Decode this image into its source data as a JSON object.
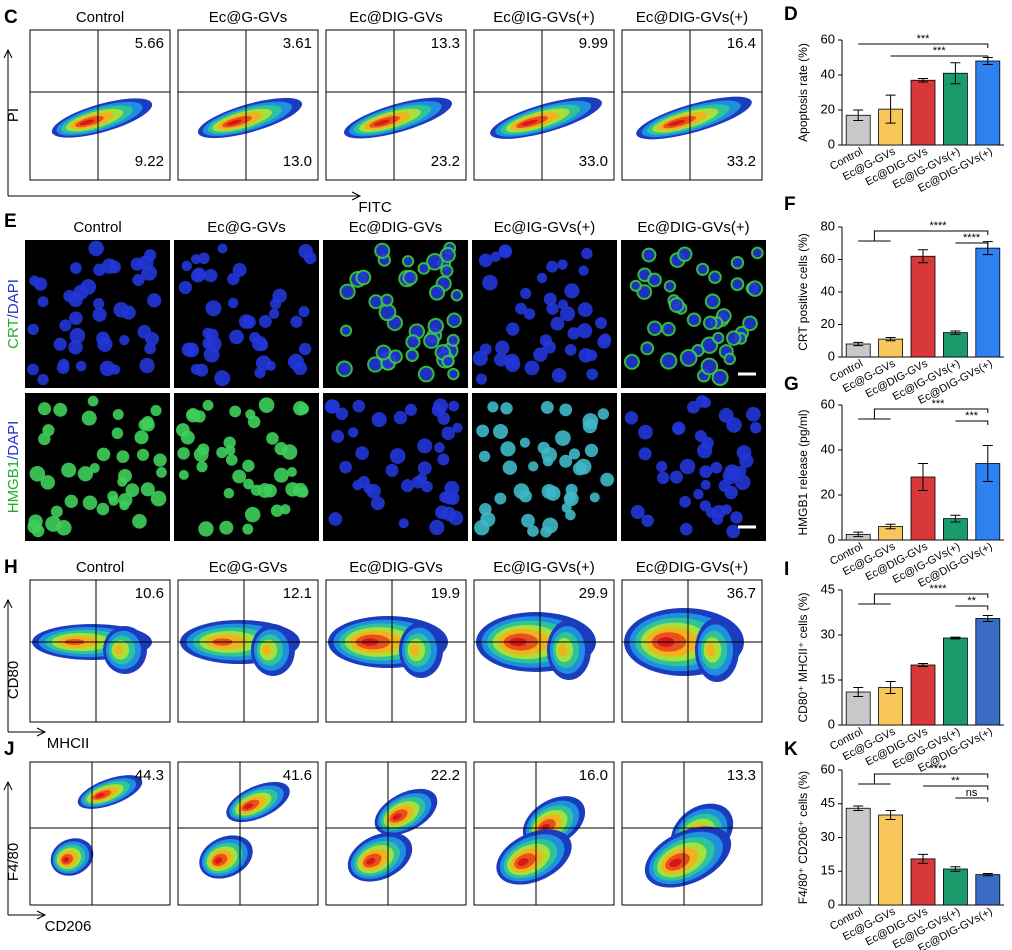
{
  "figure": {
    "flow_rows": [
      {
        "panel": "C",
        "y_label": "PI",
        "x_label": "FITC",
        "columns": [
          {
            "title": "Control",
            "upper_right": "5.66",
            "lower_right": "9.22"
          },
          {
            "title": "Ec@G-GVs",
            "upper_right": "3.61",
            "lower_right": "13.0"
          },
          {
            "title": "Ec@DIG-GVs",
            "upper_right": "13.3",
            "lower_right": "23.2"
          },
          {
            "title": "Ec@IG-GVs(+)",
            "upper_right": "9.99",
            "lower_right": "33.0"
          },
          {
            "title": "Ec@DIG-GVs(+)",
            "upper_right": "16.4",
            "lower_right": "33.2"
          }
        ]
      },
      {
        "panel": "H",
        "y_label": "CD80",
        "x_label": "MHCII",
        "columns": [
          {
            "title": "Control",
            "upper_right": "10.6"
          },
          {
            "title": "Ec@G-GVs",
            "upper_right": "12.1"
          },
          {
            "title": "Ec@DIG-GVs",
            "upper_right": "19.9"
          },
          {
            "title": "Ec@IG-GVs(+)",
            "upper_right": "29.9"
          },
          {
            "title": "Ec@DIG-GVs(+)",
            "upper_right": "36.7"
          }
        ]
      },
      {
        "panel": "J",
        "y_label": "F4/80",
        "x_label": "CD206",
        "columns": [
          {
            "upper_right": "44.3"
          },
          {
            "upper_right": "41.6"
          },
          {
            "upper_right": "22.2"
          },
          {
            "upper_right": "16.0"
          },
          {
            "upper_right": "13.3"
          }
        ]
      }
    ],
    "microscopy": {
      "panel": "E",
      "columns": [
        "Control",
        "Ec@G-GVs",
        "Ec@DIG-GVs",
        "Ec@IG-GVs(+)",
        "Ec@DIG-GVs(+)"
      ],
      "rows": [
        {
          "stain": "CRT",
          "counterstain": "/DAPI"
        },
        {
          "stain": "HMGB1",
          "counterstain": "/DAPI"
        }
      ]
    }
  },
  "chart_data": [
    {
      "type": "bar",
      "panel": "D",
      "ylabel": "Apoptosis rate (%)",
      "categories": [
        "Control",
        "Ec@G-GVs",
        "Ec@DIG-GVs",
        "Ec@IG-GVs(+)",
        "Ec@DIG-GVs(+)"
      ],
      "values": [
        17,
        20.5,
        37,
        41,
        48
      ],
      "errors": [
        3,
        8,
        1,
        6,
        2
      ],
      "colors": [
        "#c8c8c8",
        "#f7c75c",
        "#d8383a",
        "#1b9a6c",
        "#2f80f0"
      ],
      "ylim": [
        0,
        60
      ],
      "yticks": [
        0,
        20,
        40,
        60
      ],
      "significance": [
        "***",
        "***"
      ]
    },
    {
      "type": "bar",
      "panel": "F",
      "ylabel": "CRT positive cells (%)",
      "categories": [
        "Control",
        "Ec@G-GVs",
        "Ec@DIG-GVs",
        "Ec@IG-GVs(+)",
        "Ec@DIG-GVs(+)"
      ],
      "values": [
        8,
        11,
        62,
        15,
        67
      ],
      "errors": [
        1,
        1,
        4,
        1,
        4
      ],
      "colors": [
        "#c8c8c8",
        "#f7c75c",
        "#d8383a",
        "#1b9a6c",
        "#2f80f0"
      ],
      "ylim": [
        0,
        80
      ],
      "yticks": [
        0,
        20,
        40,
        60,
        80
      ],
      "significance": [
        "****",
        "****"
      ]
    },
    {
      "type": "bar",
      "panel": "G",
      "ylabel": "HMGB1 release (pg/ml)",
      "categories": [
        "Control",
        "Ec@G-GVs",
        "Ec@DIG-GVs",
        "Ec@IG-GVs(+)",
        "Ec@DIG-GVs(+)"
      ],
      "values": [
        2.5,
        6,
        28,
        9.5,
        34
      ],
      "errors": [
        1,
        1,
        6,
        1.5,
        8
      ],
      "colors": [
        "#c8c8c8",
        "#f7c75c",
        "#d8383a",
        "#1b9a6c",
        "#2f80f0"
      ],
      "ylim": [
        0,
        60
      ],
      "yticks": [
        0,
        20,
        40,
        60
      ],
      "significance": [
        "***",
        "***"
      ]
    },
    {
      "type": "bar",
      "panel": "I",
      "ylabel": "CD80⁺ MHCII⁺ cells (%)",
      "categories": [
        "Control",
        "Ec@G-GVs",
        "Ec@DIG-GVs",
        "Ec@IG-GVs(+)",
        "Ec@DIG-GVs(+)"
      ],
      "values": [
        11,
        12.5,
        20,
        29,
        35.5
      ],
      "errors": [
        1.5,
        2,
        0.5,
        0.3,
        1
      ],
      "colors": [
        "#c8c8c8",
        "#f7c75c",
        "#d8383a",
        "#1b9a6c",
        "#3a6cc4"
      ],
      "ylim": [
        0,
        45
      ],
      "yticks": [
        0,
        15,
        30,
        45
      ],
      "significance": [
        "****",
        "**"
      ]
    },
    {
      "type": "bar",
      "panel": "K",
      "ylabel": "F4/80⁺ CD206⁺ cells (%)",
      "categories": [
        "Control",
        "Ec@G-GVs",
        "Ec@DIG-GVs",
        "Ec@IG-GVs(+)",
        "Ec@DIG-GVs(+)"
      ],
      "values": [
        43,
        40,
        20.5,
        16,
        13.5
      ],
      "errors": [
        1,
        2,
        2,
        1,
        0.5
      ],
      "colors": [
        "#c8c8c8",
        "#f7c75c",
        "#d8383a",
        "#1b9a6c",
        "#3a6cc4"
      ],
      "ylim": [
        0,
        60
      ],
      "yticks": [
        0,
        15,
        30,
        45,
        60
      ],
      "significance": [
        "****",
        "**",
        "ns"
      ]
    }
  ]
}
